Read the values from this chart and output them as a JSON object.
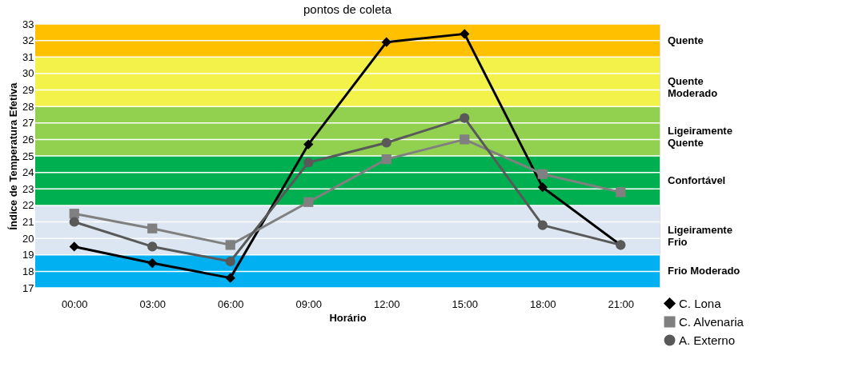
{
  "chart_data": {
    "type": "line",
    "title": "pontos de coleta",
    "xlabel": "Horário",
    "ylabel": "Índice de Temperatura Efetiva",
    "categories": [
      "00:00",
      "03:00",
      "06:00",
      "09:00",
      "12:00",
      "15:00",
      "18:00",
      "21:00"
    ],
    "series": [
      {
        "name": "C. Lona",
        "color": "#000000",
        "marker": "diamond",
        "values": [
          19.5,
          18.5,
          17.6,
          25.7,
          31.9,
          32.4,
          23.1,
          19.6
        ]
      },
      {
        "name": "C. Alvenaria",
        "color": "#808080",
        "marker": "square",
        "values": [
          21.5,
          20.6,
          19.6,
          22.2,
          24.8,
          26.0,
          23.9,
          22.8
        ]
      },
      {
        "name": "A. Externo",
        "color": "#595959",
        "marker": "circle",
        "values": [
          21.0,
          19.5,
          18.6,
          24.6,
          25.8,
          27.3,
          20.8,
          19.6
        ]
      }
    ],
    "ylim": [
      17,
      33
    ],
    "yticks": [
      17,
      18,
      19,
      20,
      21,
      22,
      23,
      24,
      25,
      26,
      27,
      28,
      29,
      30,
      31,
      32,
      33
    ],
    "grid": "y",
    "legend": "bottom right",
    "line_style": "solid",
    "bands": [
      {
        "axis": "y",
        "from": 17,
        "to": 19,
        "label": "Frio Moderado",
        "color": "#00b0f0"
      },
      {
        "axis": "y",
        "from": 19,
        "to": 22,
        "label": "Ligeiramente\nFrio",
        "color": "#dce6f2"
      },
      {
        "axis": "y",
        "from": 22,
        "to": 25,
        "label": "Confortável",
        "color": "#00b050"
      },
      {
        "axis": "y",
        "from": 25,
        "to": 28,
        "label": "Ligeiramente\nQuente",
        "color": "#92d050"
      },
      {
        "axis": "y",
        "from": 28,
        "to": 31,
        "label": "Quente\nModerado",
        "color": "#f2f24a"
      },
      {
        "axis": "y",
        "from": 31,
        "to": 33,
        "label": "Quente",
        "color": "#ffc000"
      }
    ]
  }
}
